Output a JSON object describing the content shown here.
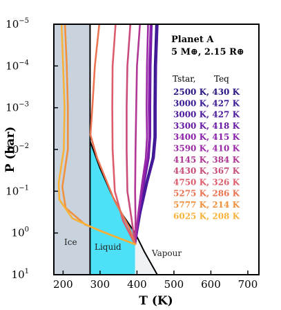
{
  "chart_data": {
    "type": "line",
    "xlabel": "T (K)",
    "ylabel": "P (bar)",
    "xlim": [
      175,
      730
    ],
    "ylim_log10": [
      1,
      -5
    ],
    "y_scale": "log-inverted",
    "xticks": [
      {
        "value": 200,
        "label": "200"
      },
      {
        "value": 300,
        "label": "300"
      },
      {
        "value": 400,
        "label": "400"
      },
      {
        "value": 500,
        "label": "500"
      },
      {
        "value": 600,
        "label": "600"
      },
      {
        "value": 700,
        "label": "700"
      }
    ],
    "yticks": [
      {
        "exp": -5,
        "base": "10",
        "sup": "−5"
      },
      {
        "exp": -4,
        "base": "10",
        "sup": "−4"
      },
      {
        "exp": -3,
        "base": "10",
        "sup": "−3"
      },
      {
        "exp": -2,
        "base": "10",
        "sup": "−2"
      },
      {
        "exp": -1,
        "base": "10",
        "sup": "−1"
      },
      {
        "exp": 0,
        "base": "10",
        "sup": "0"
      },
      {
        "exp": 1,
        "base": "10",
        "sup": "1"
      }
    ],
    "title_lines": [
      "Planet A",
      "5 M⊕, 2.15 R⊕"
    ],
    "legend_header": {
      "col1": "Tstar,",
      "col2": "Teq"
    },
    "regions": [
      {
        "name": "Ice",
        "color": "#c8d3dd"
      },
      {
        "name": "Liquid",
        "color": "#4ee0f7"
      },
      {
        "name": "Vapour",
        "color": "#eff2f4"
      }
    ],
    "phase_boundaries": {
      "melting_T": 273,
      "vapour_curve": [
        [
          273,
          -2.2
        ],
        [
          300,
          -1.55
        ],
        [
          330,
          -0.95
        ],
        [
          360,
          -0.45
        ],
        [
          395,
          0.0
        ],
        [
          420,
          0.45
        ],
        [
          455,
          1.0
        ]
      ],
      "triple_point": [
        273,
        -2.2
      ],
      "critical_like_point": [
        395,
        0.0
      ]
    },
    "series": [
      {
        "name": "2500 K, 430 K",
        "color": "#2d1483",
        "points": [
          [
            452,
            -5.0
          ],
          [
            448,
            -4.0
          ],
          [
            447,
            -3.0
          ],
          [
            447,
            -2.3
          ],
          [
            442,
            -1.8
          ],
          [
            425,
            -1.2
          ],
          [
            408,
            -0.5
          ],
          [
            400,
            0.0
          ],
          [
            395,
            0.27
          ]
        ]
      },
      {
        "name": "3000 K, 427 K",
        "color": "#3b1a94",
        "points": [
          [
            454,
            -5.0
          ],
          [
            450,
            -4.0
          ],
          [
            449,
            -3.0
          ],
          [
            449,
            -2.3
          ],
          [
            444,
            -1.8
          ],
          [
            427,
            -1.2
          ],
          [
            409,
            -0.5
          ],
          [
            400,
            0.0
          ],
          [
            395,
            0.27
          ]
        ]
      },
      {
        "name": "3000 K, 427 K",
        "color": "#4a1a9c",
        "points": [
          [
            456,
            -5.0
          ],
          [
            452,
            -4.0
          ],
          [
            451,
            -3.0
          ],
          [
            451,
            -2.3
          ],
          [
            446,
            -1.8
          ],
          [
            428,
            -1.2
          ],
          [
            410,
            -0.5
          ],
          [
            400,
            0.0
          ],
          [
            395,
            0.27
          ]
        ]
      },
      {
        "name": "3300 K, 418 K",
        "color": "#6a1ba5",
        "points": [
          [
            440,
            -5.0
          ],
          [
            437,
            -4.0
          ],
          [
            436,
            -3.0
          ],
          [
            436,
            -2.3
          ],
          [
            432,
            -1.8
          ],
          [
            420,
            -1.2
          ],
          [
            406,
            -0.5
          ],
          [
            399,
            0.0
          ],
          [
            395,
            0.27
          ]
        ]
      },
      {
        "name": "3400 K, 415 K",
        "color": "#8a1fab",
        "points": [
          [
            437,
            -5.0
          ],
          [
            433,
            -4.0
          ],
          [
            432,
            -3.0
          ],
          [
            433,
            -2.3
          ],
          [
            429,
            -1.8
          ],
          [
            417,
            -1.2
          ],
          [
            405,
            -0.5
          ],
          [
            399,
            0.0
          ],
          [
            395,
            0.27
          ]
        ]
      },
      {
        "name": "3590 K, 410 K",
        "color": "#9b2aa6",
        "points": [
          [
            430,
            -5.0
          ],
          [
            427,
            -4.0
          ],
          [
            426,
            -3.0
          ],
          [
            427,
            -2.3
          ],
          [
            424,
            -1.8
          ],
          [
            414,
            -1.2
          ],
          [
            404,
            -0.5
          ],
          [
            398,
            0.0
          ],
          [
            395,
            0.27
          ]
        ]
      },
      {
        "name": "4145 K, 384 K",
        "color": "#b03894",
        "points": [
          [
            408,
            -5.0
          ],
          [
            400,
            -4.0
          ],
          [
            398,
            -3.0
          ],
          [
            396,
            -2.0
          ],
          [
            395,
            -1.0
          ],
          [
            396,
            -0.3
          ],
          [
            395,
            0.27
          ]
        ]
      },
      {
        "name": "4430 K, 367 K",
        "color": "#c94c7c",
        "points": [
          [
            382,
            -5.0
          ],
          [
            374,
            -4.0
          ],
          [
            372,
            -3.0
          ],
          [
            372,
            -2.0
          ],
          [
            374,
            -1.0
          ],
          [
            386,
            -0.3
          ],
          [
            395,
            0.27
          ]
        ]
      },
      {
        "name": "4750 K, 326 K",
        "color": "#dd5d6c",
        "points": [
          [
            342,
            -5.0
          ],
          [
            334,
            -4.0
          ],
          [
            333,
            -3.0
          ],
          [
            334,
            -2.0
          ],
          [
            340,
            -1.0
          ],
          [
            362,
            -0.3
          ],
          [
            395,
            0.27
          ]
        ]
      },
      {
        "name": "5275 K, 286 K",
        "color": "#ea7451",
        "points": [
          [
            298,
            -5.0
          ],
          [
            286,
            -4.0
          ],
          [
            279,
            -3.0
          ],
          [
            274,
            -2.35
          ],
          [
            292,
            -1.8
          ],
          [
            338,
            -0.8
          ],
          [
            378,
            -0.15
          ],
          [
            395,
            0.27
          ]
        ]
      },
      {
        "name": "5777 K, 214 K",
        "color": "#f2913e",
        "points": [
          [
            205,
            -5.0
          ],
          [
            210,
            -4.0
          ],
          [
            213,
            -3.0
          ],
          [
            213,
            -2.0
          ],
          [
            198,
            -1.1
          ],
          [
            207,
            -0.6
          ],
          [
            260,
            -0.2
          ],
          [
            330,
            0.05
          ],
          [
            395,
            0.27
          ]
        ]
      },
      {
        "name": "6025 K, 208 K",
        "color": "#f8b23a",
        "points": [
          [
            196,
            -5.0
          ],
          [
            200,
            -4.0
          ],
          [
            204,
            -3.0
          ],
          [
            202,
            -2.0
          ],
          [
            188,
            -1.2
          ],
          [
            190,
            -0.8
          ],
          [
            225,
            -0.35
          ],
          [
            300,
            -0.05
          ],
          [
            395,
            0.27
          ]
        ]
      }
    ]
  }
}
